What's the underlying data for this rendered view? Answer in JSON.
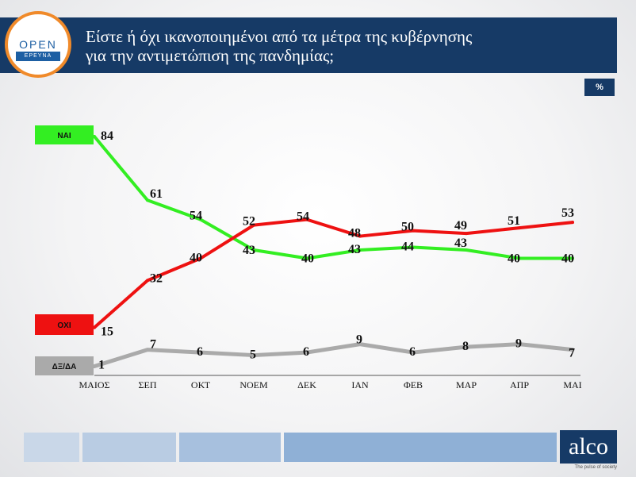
{
  "header": {
    "title_line1": "Είστε ή όχι ικανοποιημένοι από τα μέτρα της κυβέρνησης",
    "title_line2": "για την αντιμετώπιση της πανδημίας;",
    "logo_text": "OPEN",
    "logo_sub": "ΕΡΕΥΝΑ"
  },
  "unit_badge": "%",
  "footer": {
    "brand": "alco",
    "tagline": "The pulse of society"
  },
  "colors": {
    "yes": "#33ee22",
    "no": "#ee1111",
    "dk": "#aaaaaa",
    "header": "#163a66"
  },
  "chart_data": {
    "type": "line",
    "categories": [
      "ΜΑΙΟΣ",
      "ΣΕΠ",
      "ΟΚΤ",
      "ΝΟΕΜ",
      "ΔΕΚ",
      "ΙΑΝ",
      "ΦΕΒ",
      "ΜΑΡ",
      "ΑΠΡ",
      "ΜΑΙ"
    ],
    "series": [
      {
        "name": "ΝΑΙ",
        "color": "#33ee22",
        "values": [
          84,
          61,
          54,
          43,
          40,
          43,
          44,
          43,
          40,
          40
        ]
      },
      {
        "name": "ΟΧΙ",
        "color": "#ee1111",
        "values": [
          15,
          32,
          40,
          52,
          54,
          48,
          50,
          49,
          51,
          53
        ]
      },
      {
        "name": "ΔΞ/ΔΑ",
        "color": "#aaaaaa",
        "values": [
          1,
          7,
          6,
          5,
          6,
          9,
          6,
          8,
          9,
          7
        ]
      }
    ],
    "ylim": [
      0,
      84
    ],
    "grid": false,
    "legend": "left"
  }
}
